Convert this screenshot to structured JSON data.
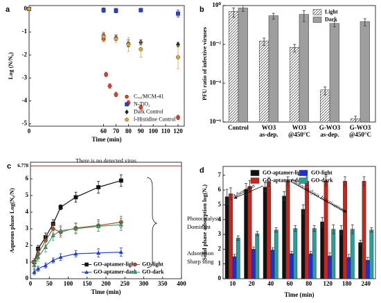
{
  "chart_data": [
    {
      "type": "scatter",
      "label": "a",
      "x_label": "Time (min)",
      "y_label": "Log (N/N₀)",
      "xlim": [
        0,
        125
      ],
      "xticks": [
        0,
        60,
        70,
        80,
        90,
        100,
        110,
        120
      ],
      "ylim": [
        -5.1,
        0.15
      ],
      "yticks": [
        0,
        -1,
        -2,
        -3,
        -4,
        -5
      ],
      "legend": "lower right",
      "legend_columns": 1,
      "series": [
        {
          "name": "C₇₀/MCM-41",
          "color": "#d9412b",
          "marker": "circle",
          "x": [
            0,
            60,
            62,
            65,
            70,
            80,
            90,
            120
          ],
          "values": [
            0,
            -1.3,
            -2.85,
            -3.35,
            -3.72,
            -4.08,
            -4.28,
            -4.72
          ],
          "errors": [
            0.05,
            0.12,
            0.1,
            0.1,
            0.1,
            0.1,
            0.1,
            0.1
          ]
        },
        {
          "name": "N-TiO₂",
          "color": "#1f3fd6",
          "marker": "square",
          "x": [
            0,
            60,
            70,
            90,
            120
          ],
          "values": [
            0,
            -0.05,
            -0.07,
            -0.05,
            -0.2
          ],
          "errors": [
            0.05,
            0.1,
            0.1,
            0.08,
            0.15
          ]
        },
        {
          "name": "Dark Control",
          "color": "#222222",
          "marker": "diamond",
          "x": [
            0,
            60,
            70,
            80,
            90,
            120
          ],
          "values": [
            0,
            -1.15,
            -1.25,
            -1.5,
            -1.45,
            -1.55
          ],
          "errors": [
            0.05,
            0.1,
            0.12,
            0.15,
            0.1,
            0.1
          ]
        },
        {
          "name": "l-Histidine Control",
          "color": "#e0a32a",
          "marker": "circle",
          "x": [
            0,
            60,
            70,
            80,
            90,
            120
          ],
          "values": [
            0,
            -1.2,
            -1.3,
            -1.55,
            -1.75,
            -2.1
          ],
          "errors": [
            0.05,
            0.2,
            0.15,
            0.3,
            0.35,
            0.5
          ]
        }
      ]
    },
    {
      "type": "bar",
      "label": "b",
      "y_label": "PFU ratio of infective viruses",
      "log_y": true,
      "categories": [
        [
          "Control"
        ],
        [
          "WO3",
          "as-dep."
        ],
        [
          "WO3",
          "@450°C"
        ],
        [
          "G-WO3",
          "as-dep."
        ],
        [
          "G-WO3",
          "@450°C"
        ]
      ],
      "ylim": [
        1e-06,
        1
      ],
      "yticks": [
        {
          "value": 1e-06,
          "label": "10⁻⁶"
        },
        {
          "value": 0.0001,
          "label": "10⁻⁴"
        },
        {
          "value": 0.01,
          "label": "10⁻²"
        },
        {
          "value": 1,
          "label": "10⁰"
        }
      ],
      "legend": "upper right",
      "legend_columns": 1,
      "series": [
        {
          "name": "Light",
          "color": "#ffffff",
          "pattern": "hatch",
          "values": [
            0.5,
            0.015,
            0.007,
            4.5e-05,
            1.5e-06
          ],
          "errors": [
            0.25,
            0.006,
            0.003,
            2e-05,
            5e-07
          ]
        },
        {
          "name": "Dark",
          "color": "#9e9e9e",
          "values": [
            0.75,
            0.3,
            0.35,
            0.12,
            0.15
          ],
          "errors": [
            0.25,
            0.1,
            0.2,
            0.04,
            0.06
          ]
        }
      ]
    },
    {
      "type": "line",
      "label": "c",
      "x_label": "Time (min)",
      "y_label": "Aqueous phase Log(N₀/N)",
      "x": [
        10,
        20,
        40,
        60,
        80,
        120,
        180,
        240
      ],
      "xlim": [
        0,
        400
      ],
      "xticks": [
        0,
        50,
        100,
        150,
        200,
        250,
        300,
        350,
        400
      ],
      "ylim": [
        0,
        7
      ],
      "yticks": [
        0,
        1,
        2,
        3,
        4,
        5,
        6,
        {
          "value": 6.778,
          "label": "6.778"
        }
      ],
      "reference_color": "#b03a2e",
      "legend": "lower right",
      "legend_columns": 2,
      "annotations": [
        "There is no detected virus",
        "Photocatalysis",
        "Dominant",
        "Adsorption",
        "Sharp sting"
      ],
      "series": [
        {
          "name": "GO-aptamer-light",
          "color": "#111111",
          "marker": "square",
          "values": [
            1.0,
            1.8,
            2.5,
            3.3,
            4.3,
            4.9,
            5.5,
            5.9
          ],
          "errors": [
            0.2,
            0.2,
            0.25,
            0.25,
            0.15,
            0.3,
            0.35,
            0.35
          ]
        },
        {
          "name": "GO-aptamer-dark",
          "color": "#1f3fd6",
          "marker": "triangle",
          "values": [
            0.4,
            0.6,
            0.8,
            1.1,
            1.3,
            1.5,
            1.55,
            1.6
          ],
          "errors": [
            0.15,
            0.15,
            0.15,
            0.15,
            0.2,
            0.2,
            0.25,
            0.25
          ]
        },
        {
          "name": "GO-light",
          "color": "#a0522d",
          "marker": "circle",
          "values": [
            1.0,
            1.5,
            2.3,
            3.0,
            2.8,
            3.05,
            3.2,
            3.4
          ],
          "errors": [
            0.2,
            0.3,
            0.3,
            0.3,
            0.3,
            0.3,
            0.35,
            0.35
          ]
        },
        {
          "name": "GO-dark",
          "color": "#3aa06a",
          "marker": "triangle",
          "values": [
            0.8,
            1.3,
            1.9,
            2.6,
            2.9,
            3.0,
            3.15,
            3.25
          ],
          "errors": [
            0.2,
            0.25,
            0.3,
            0.3,
            0.3,
            0.3,
            0.3,
            0.35
          ]
        }
      ]
    },
    {
      "type": "bar",
      "label": "d",
      "x_label": "Time (min)",
      "y_label": "Solid phase adsorption log(Nₐ)",
      "categories": [
        "10",
        "20",
        "40",
        "60",
        "80",
        "120",
        "180",
        "240"
      ],
      "ylim": [
        0,
        7.6
      ],
      "yticks": [
        0,
        1,
        2,
        3,
        4,
        5,
        6,
        7
      ],
      "legend": "upper center",
      "legend_columns": 2,
      "annotations": [
        "Adsorption",
        "Photocatalysis Inactivation"
      ],
      "series": [
        {
          "name": "GO-aptamer-light",
          "color": "#111111",
          "values": [
            5.55,
            6.05,
            6.2,
            5.6,
            4.7,
            3.85,
            3.3,
            2.45
          ],
          "errors": [
            0.5,
            0.4,
            0.3,
            0.3,
            0.3,
            0.3,
            0.3,
            0.15
          ]
        },
        {
          "name": "GO-aptamer-dark",
          "color": "#c8261c",
          "values": [
            5.75,
            6.25,
            6.55,
            6.6,
            6.6,
            6.6,
            6.6,
            6.6
          ],
          "errors": [
            0.4,
            0.4,
            0.3,
            0.3,
            0.3,
            0.3,
            0.3,
            0.3
          ]
        },
        {
          "name": "GO-light",
          "color": "#1f2fd6",
          "values": [
            1.5,
            2.0,
            1.95,
            1.7,
            1.7,
            1.55,
            1.45,
            1.25
          ],
          "errors": [
            0.15,
            0.15,
            0.15,
            0.15,
            0.15,
            0.2,
            0.2,
            0.2
          ]
        },
        {
          "name": "GO-dark",
          "color": "#2a9d9d",
          "values": [
            2.75,
            3.05,
            3.3,
            3.4,
            3.4,
            3.35,
            3.35,
            3.3
          ],
          "errors": [
            0.15,
            0.15,
            0.15,
            0.2,
            0.2,
            0.3,
            0.3,
            0.15
          ]
        }
      ]
    }
  ]
}
